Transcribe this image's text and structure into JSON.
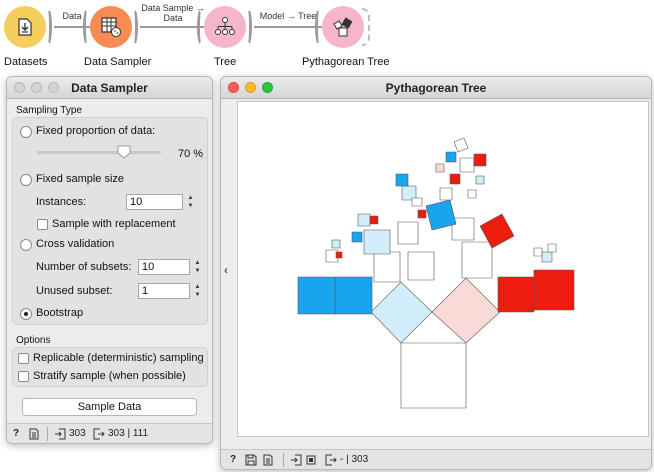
{
  "workflow": {
    "nodes": [
      {
        "label": "Datasets",
        "color": "#f6ce5d",
        "icon": "file-import-icon"
      },
      {
        "label": "Data Sampler",
        "color": "#f68c53",
        "icon": "table-sampler-icon"
      },
      {
        "label": "Tree",
        "color": "#f5b6cd",
        "icon": "tree-hierarchy-icon"
      },
      {
        "label": "Pythagorean Tree",
        "color": "#f5b6cd",
        "icon": "pythagorean-tree-icon"
      }
    ],
    "links": [
      {
        "label": "Data"
      },
      {
        "label_line1": "Data Sample →",
        "label_line2": "Data"
      },
      {
        "label": "Model → Tree"
      }
    ]
  },
  "sampler": {
    "title": "Data Sampler",
    "sampling_type_label": "Sampling Type",
    "fixed_proportion_label": "Fixed proportion of data:",
    "proportion_value": "70 %",
    "proportion_fraction": 0.7,
    "fixed_size_label": "Fixed sample size",
    "instances_label": "Instances:",
    "instances_value": "10",
    "replacement_label": "Sample with replacement",
    "cross_validation_label": "Cross validation",
    "subsets_label": "Number of subsets:",
    "subsets_value": "10",
    "unused_label": "Unused subset:",
    "unused_value": "1",
    "bootstrap_label": "Bootstrap",
    "selected_mode": "bootstrap",
    "options_label": "Options",
    "replicable_label": "Replicable (deterministic) sampling",
    "stratify_label": "Stratify sample (when possible)",
    "sample_button": "Sample Data",
    "status": {
      "input_count": "303",
      "output_count": "303 | 111"
    }
  },
  "pythagorean": {
    "title": "Pythagorean Tree",
    "status": {
      "output_text": "- | 303"
    },
    "colors": {
      "blue_strong": "#1aa3ef",
      "blue_light": "#d2eefb",
      "red_strong": "#ee1c0e",
      "red_light": "#fadad6",
      "neutral": "#ffffff"
    }
  }
}
